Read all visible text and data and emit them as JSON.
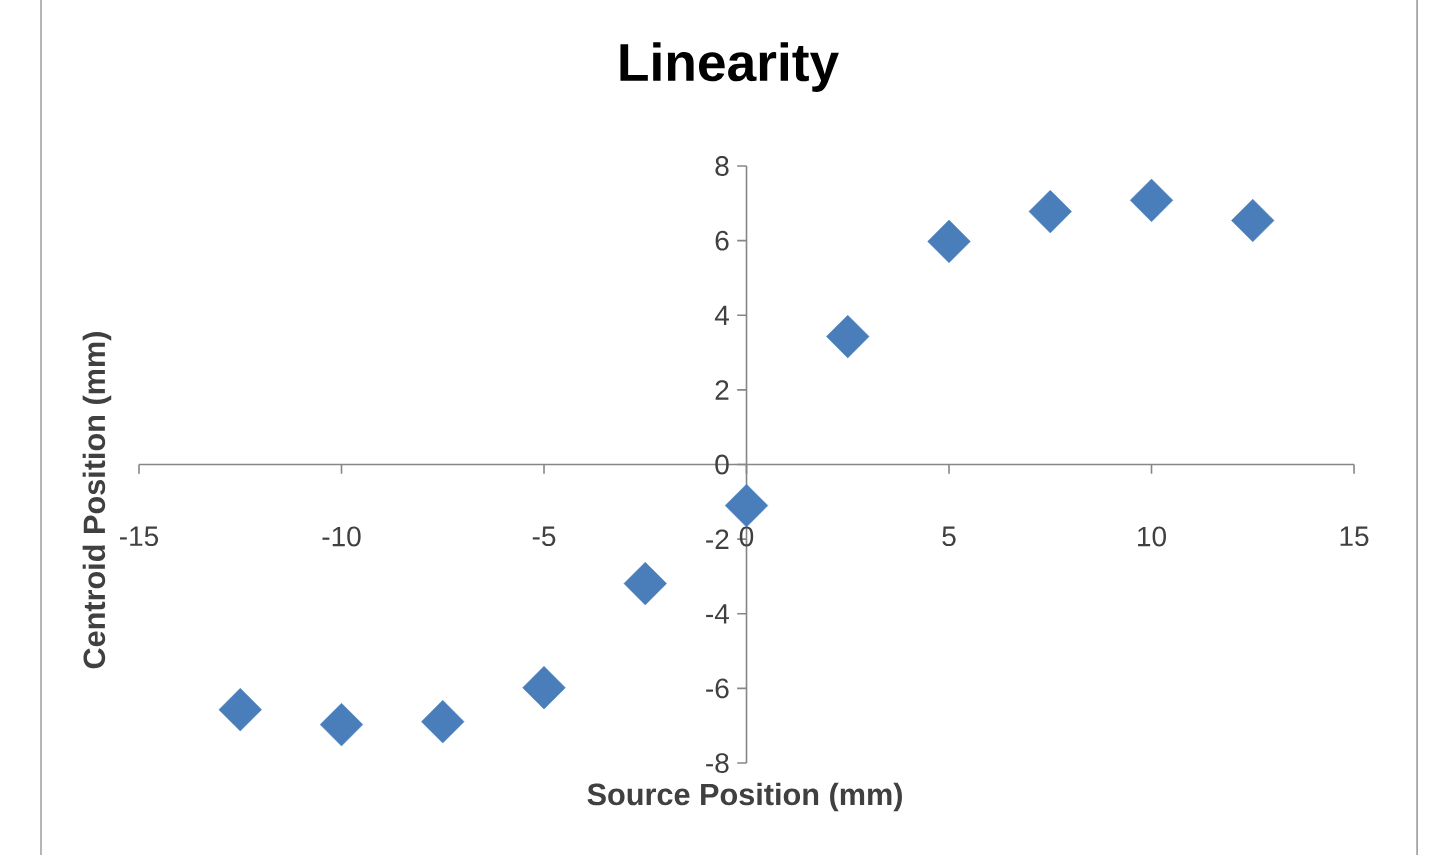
{
  "chart_data": {
    "type": "scatter",
    "title": "Linearity",
    "xlabel": "Source Position (mm)",
    "ylabel": "Centroid Position (mm)",
    "x": [
      -12.5,
      -10,
      -7.5,
      -5,
      -2.5,
      0,
      2.5,
      5,
      7.5,
      10,
      12.5
    ],
    "series": [
      {
        "color": "#4a7ebb",
        "values": [
          -6.57,
          -6.97,
          -6.89,
          -5.98,
          -3.19,
          -1.1,
          3.43,
          5.98,
          6.78,
          7.08,
          6.54
        ]
      }
    ],
    "xlim": [
      -15,
      15
    ],
    "ylim": [
      -8,
      8
    ],
    "xticks": [
      -15,
      -10,
      -5,
      0,
      5,
      10,
      15
    ],
    "yticks": [
      -8,
      -6,
      -4,
      -2,
      0,
      2,
      4,
      6,
      8
    ],
    "marker": "diamond"
  }
}
